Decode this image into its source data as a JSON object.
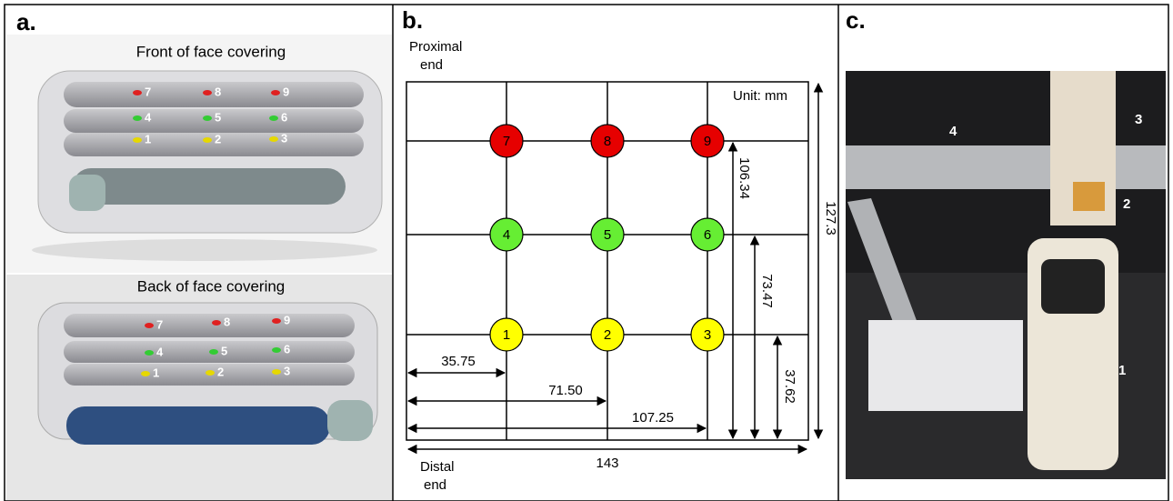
{
  "panel_a": {
    "label": "a.",
    "front": {
      "title": "Front of face covering",
      "markers": [
        "7",
        "8",
        "9",
        "4",
        "5",
        "6",
        "1",
        "2",
        "3"
      ]
    },
    "back": {
      "title": "Back of face covering",
      "markers": [
        "7",
        "8",
        "9",
        "4",
        "5",
        "6",
        "1",
        "2",
        "3"
      ]
    }
  },
  "panel_b": {
    "label": "b.",
    "proximal_end": [
      "Proximal",
      "end"
    ],
    "distal_end": [
      "Distal",
      "end"
    ],
    "unit": "Unit: mm",
    "points": [
      {
        "label": "7",
        "color": "#e60000"
      },
      {
        "label": "8",
        "color": "#e60000"
      },
      {
        "label": "9",
        "color": "#e60000"
      },
      {
        "label": "4",
        "color": "#66ee33"
      },
      {
        "label": "5",
        "color": "#66ee33"
      },
      {
        "label": "6",
        "color": "#66ee33"
      },
      {
        "label": "1",
        "color": "#ffff00"
      },
      {
        "label": "2",
        "color": "#ffff00"
      },
      {
        "label": "3",
        "color": "#ffff00"
      }
    ],
    "horizontal_dimensions": [
      "35.75",
      "71.50",
      "107.25",
      "143"
    ],
    "vertical_dimensions": [
      "37.62",
      "73.47",
      "106.34",
      "127.3"
    ]
  },
  "panel_c": {
    "label": "c.",
    "labels": [
      "4",
      "3",
      "2",
      "1"
    ]
  }
}
